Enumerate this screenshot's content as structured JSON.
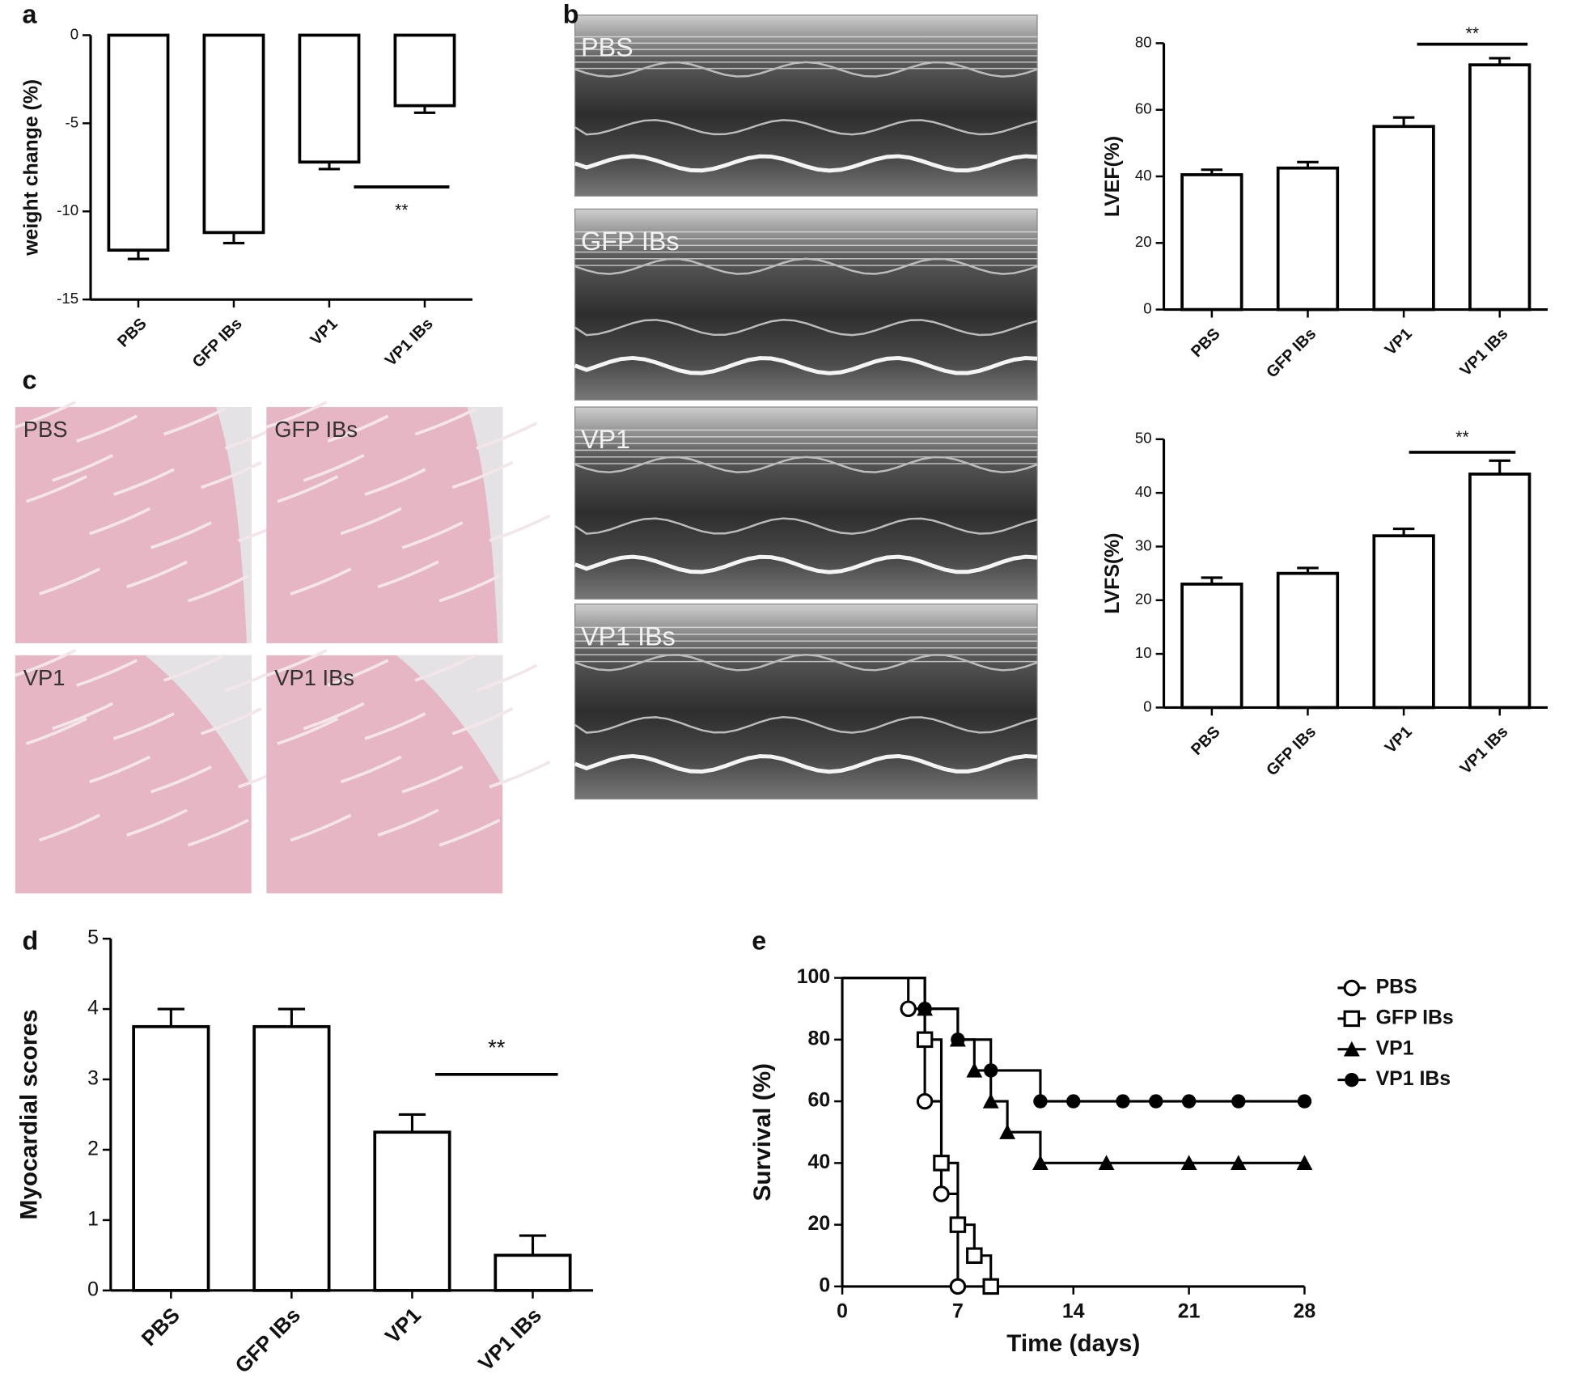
{
  "panel_labels": [
    "a",
    "b",
    "c",
    "d",
    "e"
  ],
  "echo_labels": [
    "PBS",
    "GFP IBs",
    "VP1",
    "VP1 IBs"
  ],
  "histology_labels": [
    "PBS",
    "GFP IBs",
    "VP1",
    "VP1 IBs"
  ],
  "chart_data": [
    {
      "type": "bar",
      "ylabel": "weight change (%)",
      "categories": [
        "PBS",
        "GFP IBs",
        "VP1",
        "VP1 IBs"
      ],
      "values": [
        -12.2,
        -11.2,
        -7.2,
        -4.0
      ],
      "errors": [
        0.5,
        0.6,
        0.4,
        0.4
      ],
      "ylim": [
        -15,
        0
      ],
      "yticks": [
        -15,
        -10,
        -5,
        0
      ],
      "annotation": "**",
      "color": "#ffffff"
    },
    {
      "type": "bar",
      "ylabel": "LVEF(%)",
      "categories": [
        "PBS",
        "GFP IBs",
        "VP1",
        "VP1 IBs"
      ],
      "values": [
        40.5,
        42.5,
        55,
        73.5
      ],
      "errors": [
        1.5,
        1.8,
        2.7,
        2
      ],
      "ylim": [
        0,
        80
      ],
      "yticks": [
        0,
        20,
        40,
        60,
        80
      ],
      "annotation": "**",
      "color": "#ffffff"
    },
    {
      "type": "bar",
      "ylabel": "LVFS(%)",
      "categories": [
        "PBS",
        "GFP IBs",
        "VP1",
        "VP1 IBs"
      ],
      "values": [
        23,
        25,
        32,
        43.5
      ],
      "errors": [
        1.2,
        1,
        1.3,
        2.5
      ],
      "ylim": [
        0,
        50
      ],
      "yticks": [
        0,
        10,
        20,
        30,
        40,
        50
      ],
      "annotation": "**",
      "color": "#ffffff"
    },
    {
      "type": "bar",
      "ylabel": "Myocardial scores",
      "categories": [
        "PBS",
        "GFP IBs",
        "VP1",
        "VP1 IBs"
      ],
      "values": [
        3.75,
        3.75,
        2.25,
        0.5
      ],
      "errors": [
        0.25,
        0.25,
        0.25,
        0.28
      ],
      "ylim": [
        0,
        5
      ],
      "yticks": [
        0,
        1,
        2,
        3,
        4,
        5
      ],
      "annotation": "**",
      "color": "#ffffff"
    },
    {
      "type": "line",
      "xlabel": "Time (days)",
      "ylabel": "Survival (%)",
      "xlim": [
        0,
        28
      ],
      "xticks": [
        0,
        7,
        14,
        21,
        28
      ],
      "ylim": [
        0,
        100
      ],
      "yticks": [
        0,
        20,
        40,
        60,
        80,
        100
      ],
      "series": [
        {
          "name": "PBS",
          "color": "#000000",
          "marker": "open-circle",
          "x": [
            0,
            4,
            5,
            6,
            7
          ],
          "values": [
            100,
            90,
            60,
            30,
            0
          ]
        },
        {
          "name": "GFP IBs",
          "color": "#000000",
          "marker": "open-square",
          "x": [
            0,
            5,
            6,
            7,
            8,
            9
          ],
          "values": [
            100,
            80,
            40,
            20,
            10,
            0
          ]
        },
        {
          "name": "VP1",
          "color": "#000000",
          "marker": "filled-triangle",
          "x": [
            0,
            5,
            7,
            8,
            9,
            10,
            12,
            16,
            21,
            24,
            28
          ],
          "values": [
            100,
            90,
            80,
            70,
            60,
            50,
            40,
            40,
            40,
            40,
            40
          ]
        },
        {
          "name": "VP1 IBs",
          "color": "#000000",
          "marker": "filled-circle",
          "x": [
            0,
            5,
            7,
            9,
            12,
            14,
            17,
            19,
            21,
            24,
            28
          ],
          "values": [
            100,
            90,
            80,
            70,
            60,
            60,
            60,
            60,
            60,
            60,
            60
          ]
        }
      ]
    }
  ]
}
